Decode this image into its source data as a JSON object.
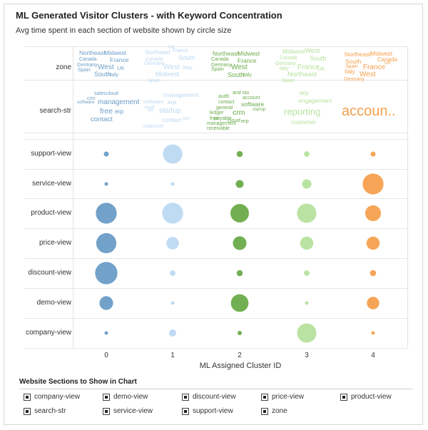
{
  "header": {
    "title": "ML Generated Visitor Clusters - with Keyword Concentration",
    "subtitle": "Avg time spent in each section of website shown by circle size"
  },
  "chart_data": {
    "type": "scatter",
    "xlabel": "ML Assigned Cluster ID",
    "categories": [
      "0",
      "1",
      "2",
      "3",
      "4"
    ],
    "cluster_colors": [
      "#6a9cc6",
      "#bcd9f2",
      "#6aab4a",
      "#b6e29e",
      "#f5a04e"
    ],
    "rows": [
      "support-view",
      "service-view",
      "product-view",
      "price-view",
      "discount-view",
      "demo-view",
      "company-view"
    ],
    "values": {
      "support-view": [
        4,
        60,
        6,
        5,
        4
      ],
      "service-view": [
        2,
        1,
        10,
        14,
        70
      ],
      "product-view": [
        70,
        70,
        55,
        60,
        40
      ],
      "price-view": [
        65,
        25,
        30,
        28,
        28
      ],
      "discount-view": [
        80,
        5,
        6,
        5,
        6
      ],
      "demo-view": [
        30,
        1,
        50,
        1,
        25
      ],
      "company-view": [
        2,
        8,
        3,
        60,
        2
      ]
    },
    "word_clouds": {
      "zone": [
        {
          "words": [
            "Northeast",
            "Midwest",
            "Canada",
            "France",
            "Germany",
            "West",
            "UK",
            "Spain",
            "South",
            "Italy"
          ]
        },
        {
          "words": [
            "UK",
            "Northeast",
            "France",
            "South",
            "Canada",
            "Germany",
            "West",
            "Italy",
            "Midwest",
            "Spain"
          ]
        },
        {
          "words": [
            "Northeast",
            "Midwest",
            "Canada",
            "France",
            "Germany",
            "West",
            "Spain",
            "South",
            "Italy"
          ]
        },
        {
          "words": [
            "Midwest",
            "West",
            "Canada",
            "South",
            "Germany",
            "Italy",
            "France",
            "UK",
            "Northeast",
            "Spain"
          ]
        },
        {
          "words": [
            "Northeast",
            "Midwest",
            "South",
            "Canada",
            "Spain",
            "France",
            "UK",
            "Italy",
            "West",
            "Germany"
          ]
        }
      ],
      "search-str": [
        {
          "words": [
            "sales",
            "cloud",
            "crm",
            "management",
            "software",
            "free",
            "erp",
            "contact"
          ]
        },
        {
          "words": [
            "management",
            "software",
            "erp",
            "cloud",
            "tax",
            "startup",
            "contact",
            "crm",
            "customer"
          ]
        },
        {
          "words": [
            "and",
            "tax",
            "audit",
            "account",
            "contact",
            "software",
            "general",
            "ledger",
            "startup",
            "crm",
            "free",
            "payable",
            "cloud",
            "erp",
            "management",
            "receivable"
          ]
        },
        {
          "words": [
            "erp",
            "engagement",
            "reporting",
            "customer"
          ]
        },
        {
          "words": [
            "accoun.."
          ]
        }
      ]
    }
  },
  "legend": {
    "title": "Website Sections to Show in Chart",
    "items": [
      "company-view",
      "demo-view",
      "discount-view",
      "price-view",
      "product-view",
      "search-str",
      "service-view",
      "support-view",
      "zone"
    ]
  }
}
